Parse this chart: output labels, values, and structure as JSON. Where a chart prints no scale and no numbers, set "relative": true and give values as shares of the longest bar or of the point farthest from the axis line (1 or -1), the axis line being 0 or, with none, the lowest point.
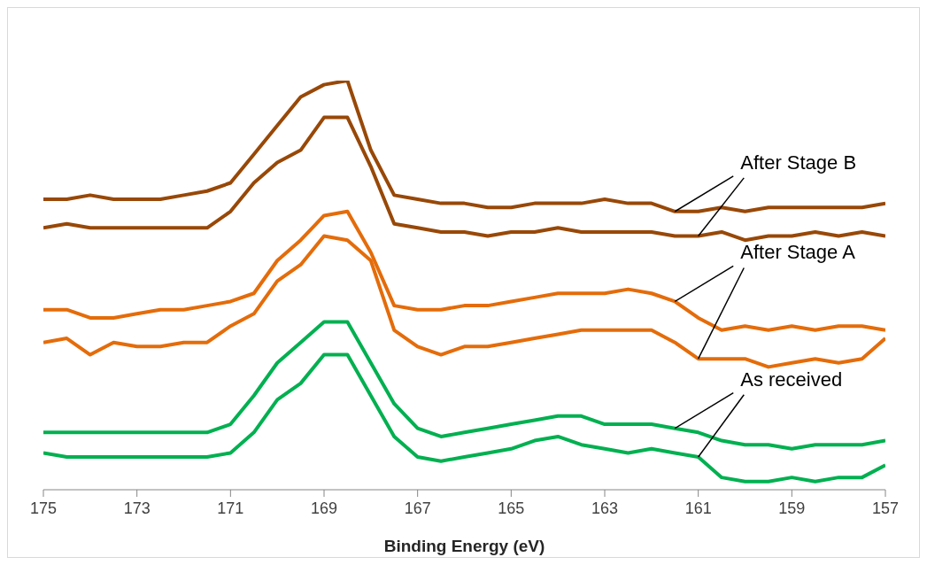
{
  "chart_data": {
    "type": "line",
    "relative": true,
    "xlabel": "Binding Energy (eV)",
    "x": [
      175,
      174.5,
      174,
      173.5,
      173,
      172.5,
      172,
      171.5,
      171,
      170.5,
      170,
      169.5,
      169,
      168.5,
      168,
      167.5,
      167,
      166.5,
      166,
      165.5,
      165,
      164.5,
      164,
      163.5,
      163,
      162.5,
      162,
      161.5,
      161,
      160.5,
      160,
      159.5,
      159,
      158.5,
      158,
      157.5,
      157
    ],
    "xlim": [
      175,
      157
    ],
    "xticks": [
      175,
      173,
      171,
      169,
      167,
      165,
      163,
      161,
      159,
      157
    ],
    "grid": false,
    "legend": false,
    "marker": "none",
    "line_style": "solid",
    "series": [
      {
        "color": "#984807",
        "values": [
          0.71,
          0.71,
          0.72,
          0.71,
          0.71,
          0.71,
          0.72,
          0.73,
          0.75,
          0.82,
          0.89,
          0.96,
          0.99,
          1.0,
          0.83,
          0.72,
          0.71,
          0.7,
          0.7,
          0.69,
          0.69,
          0.7,
          0.7,
          0.7,
          0.71,
          0.7,
          0.7,
          0.68,
          0.68,
          0.69,
          0.68,
          0.69,
          0.69,
          0.69,
          0.69,
          0.69,
          0.7
        ]
      },
      {
        "color": "#984807",
        "values": [
          0.64,
          0.65,
          0.64,
          0.64,
          0.64,
          0.64,
          0.64,
          0.64,
          0.68,
          0.75,
          0.8,
          0.83,
          0.91,
          0.91,
          0.79,
          0.65,
          0.64,
          0.63,
          0.63,
          0.62,
          0.63,
          0.63,
          0.64,
          0.63,
          0.63,
          0.63,
          0.63,
          0.62,
          0.62,
          0.63,
          0.61,
          0.62,
          0.62,
          0.63,
          0.62,
          0.63,
          0.62
        ]
      },
      {
        "color": "#e46c0a",
        "values": [
          0.44,
          0.44,
          0.42,
          0.42,
          0.43,
          0.44,
          0.44,
          0.45,
          0.46,
          0.48,
          0.56,
          0.61,
          0.67,
          0.68,
          0.58,
          0.45,
          0.44,
          0.44,
          0.45,
          0.45,
          0.46,
          0.47,
          0.48,
          0.48,
          0.48,
          0.49,
          0.48,
          0.46,
          0.42,
          0.39,
          0.4,
          0.39,
          0.4,
          0.39,
          0.4,
          0.4,
          0.39
        ]
      },
      {
        "color": "#e46c0a",
        "values": [
          0.36,
          0.37,
          0.33,
          0.36,
          0.35,
          0.35,
          0.36,
          0.36,
          0.4,
          0.43,
          0.51,
          0.55,
          0.62,
          0.61,
          0.56,
          0.39,
          0.35,
          0.33,
          0.35,
          0.35,
          0.36,
          0.37,
          0.38,
          0.39,
          0.39,
          0.39,
          0.39,
          0.36,
          0.32,
          0.32,
          0.32,
          0.3,
          0.31,
          0.32,
          0.31,
          0.32,
          0.37
        ]
      },
      {
        "color": "#00b050",
        "values": [
          0.14,
          0.14,
          0.14,
          0.14,
          0.14,
          0.14,
          0.14,
          0.14,
          0.16,
          0.23,
          0.31,
          0.36,
          0.41,
          0.41,
          0.31,
          0.21,
          0.15,
          0.13,
          0.14,
          0.15,
          0.16,
          0.17,
          0.18,
          0.18,
          0.16,
          0.16,
          0.16,
          0.15,
          0.14,
          0.12,
          0.11,
          0.11,
          0.1,
          0.11,
          0.11,
          0.11,
          0.12
        ]
      },
      {
        "color": "#00b050",
        "values": [
          0.09,
          0.08,
          0.08,
          0.08,
          0.08,
          0.08,
          0.08,
          0.08,
          0.09,
          0.14,
          0.22,
          0.26,
          0.33,
          0.33,
          0.23,
          0.13,
          0.08,
          0.07,
          0.08,
          0.09,
          0.1,
          0.12,
          0.13,
          0.11,
          0.1,
          0.09,
          0.1,
          0.09,
          0.08,
          0.03,
          0.02,
          0.02,
          0.03,
          0.02,
          0.03,
          0.03,
          0.06
        ]
      }
    ],
    "annotations": [
      "After Stage B",
      "After Stage A",
      "As received"
    ]
  }
}
